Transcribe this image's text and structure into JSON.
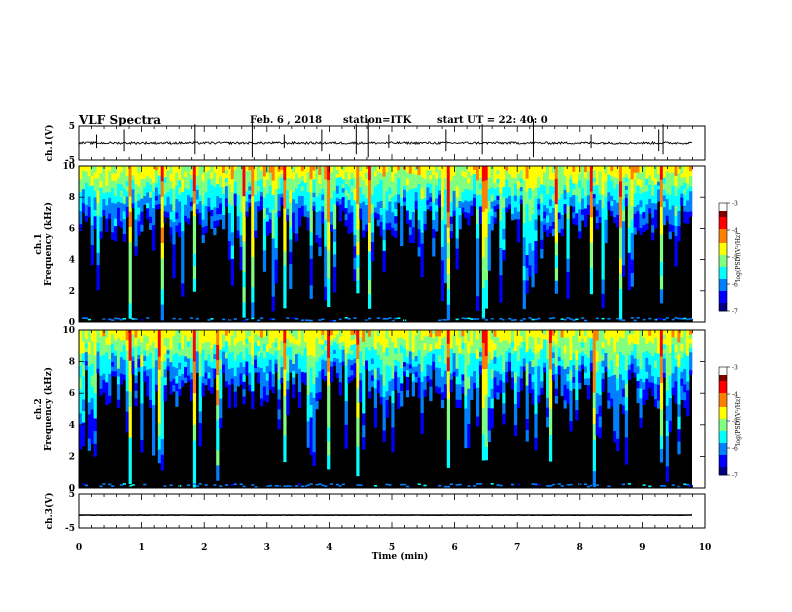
{
  "header": {
    "title": "VLF Spectra",
    "date": "Feb. 6 , 2018",
    "station": "station=ITK",
    "start": "start UT = 22: 40: 0"
  },
  "chart_data": [
    {
      "type": "line",
      "name": "ch1-waveform",
      "ylabel": "ch.1(V)",
      "yticks": [
        "5",
        "-5"
      ],
      "ylim": [
        -5,
        5
      ],
      "baseline": 0,
      "noise": 0.35,
      "spikes": [
        0.28,
        0.72,
        1.85,
        2.77,
        3.28,
        3.88,
        4.43,
        4.62,
        4.95,
        5.86,
        6.44,
        7.26,
        8.18,
        9.26,
        9.33
      ]
    },
    {
      "type": "heatmap",
      "name": "ch1-spectrogram",
      "ylabel": "ch.1\nFrequency (kHz)",
      "yticks": [
        "0",
        "2",
        "4",
        "6",
        "8",
        "10"
      ],
      "ylim": [
        0,
        10
      ],
      "xlim": [
        0,
        9.85
      ],
      "colorbar": {
        "label": "log(PSD)(V²/Hz)",
        "ticks": [
          "-3",
          "-4",
          "-5",
          "-6",
          "-7"
        ],
        "range": [
          -7,
          -3
        ]
      },
      "strong_lines_min": [
        0.8,
        1.3,
        1.8,
        2.6,
        2.77,
        3.27,
        3.95,
        4.43,
        4.6,
        5.87,
        6.45,
        7.6,
        8.18,
        8.63,
        9.27
      ]
    },
    {
      "type": "heatmap",
      "name": "ch2-spectrogram",
      "ylabel": "ch.2\nFrequency (kHz)",
      "yticks": [
        "0",
        "2",
        "4",
        "6",
        "8",
        "10"
      ],
      "ylim": [
        0,
        10
      ],
      "xlim": [
        0,
        9.85
      ],
      "colorbar": {
        "label": "log(PSD)(V²/Hz)",
        "ticks": [
          "-3",
          "-4",
          "-5",
          "-6",
          "-7"
        ],
        "range": [
          -7,
          -3
        ]
      },
      "strong_lines_min": [
        0.8,
        1.25,
        1.8,
        2.2,
        3.27,
        3.95,
        4.43,
        5.87,
        6.45,
        7.5,
        8.2,
        9.27
      ]
    },
    {
      "type": "line",
      "name": "ch3-waveform",
      "ylabel": "ch.3(V)",
      "yticks": [
        "5",
        "-5"
      ],
      "ylim": [
        -5,
        5
      ],
      "baseline": -1.2,
      "noise": 0.05,
      "spikes": []
    }
  ],
  "xaxis": {
    "label": "Time (min)",
    "ticks": [
      "0",
      "1",
      "2",
      "3",
      "4",
      "5",
      "6",
      "7",
      "8",
      "9",
      "10"
    ],
    "xlim": [
      0,
      10
    ]
  },
  "colors": {
    "jet": [
      "#000080",
      "#0000ff",
      "#0080ff",
      "#00ffff",
      "#80ff80",
      "#ffff00",
      "#ff8000",
      "#ff0000",
      "#800000"
    ],
    "background": "#000000"
  }
}
